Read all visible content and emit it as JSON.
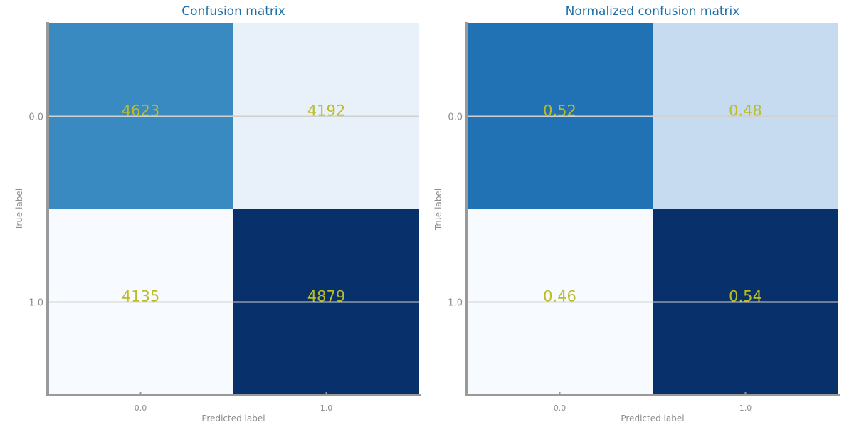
{
  "chart_data": [
    {
      "type": "heatmap",
      "title": "Confusion matrix",
      "xlabel": "Predicted label",
      "ylabel": "True label",
      "x_tick_labels": [
        "0.0",
        "1.0"
      ],
      "y_tick_labels": [
        "0.0",
        "1.0"
      ],
      "value_labels": [
        [
          "4623",
          "4192"
        ],
        [
          "4135",
          "4879"
        ]
      ],
      "values": [
        [
          4623,
          4192
        ],
        [
          4135,
          4879
        ]
      ],
      "colormap": "Blues",
      "grid": true,
      "colorbar": false
    },
    {
      "type": "heatmap",
      "title": "Normalized confusion matrix",
      "xlabel": "Predicted label",
      "ylabel": "True label",
      "x_tick_labels": [
        "0.0",
        "1.0"
      ],
      "y_tick_labels": [
        "0.0",
        "1.0"
      ],
      "value_labels": [
        [
          "0.52",
          "0.48"
        ],
        [
          "0.46",
          "0.54"
        ]
      ],
      "values": [
        [
          0.52,
          0.48
        ],
        [
          0.46,
          0.54
        ]
      ],
      "colormap": "Blues",
      "grid": true,
      "colorbar": false
    }
  ],
  "colors": {
    "title": "#1f6fa5",
    "annotation": "#bcbd22",
    "axis": "#999999",
    "grid": "#d0d0d0",
    "tick_text": "#8c8c8c"
  }
}
